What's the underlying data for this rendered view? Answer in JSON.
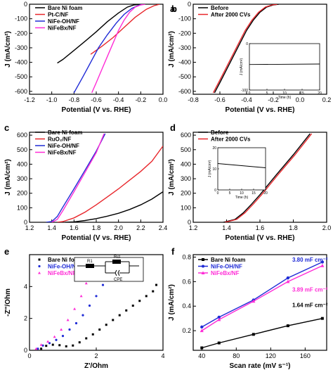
{
  "colors": {
    "black": "#000000",
    "red": "#e8262b",
    "blue": "#1f2bd6",
    "magenta": "#ff2cd6"
  },
  "chart_data": [
    {
      "panel": "a",
      "type": "line",
      "xlabel": "Potential (V vs. RHE)",
      "ylabel": "J (mA/cm²)",
      "xlim": [
        -1.2,
        0
      ],
      "ylim": [
        -620,
        0
      ],
      "xticks": [
        -1.2,
        -1.0,
        -0.8,
        -0.6,
        -0.4,
        -0.2,
        0.0
      ],
      "yticks": [
        0,
        -100,
        -200,
        -300,
        -400,
        -500,
        -600
      ],
      "legend": "left",
      "series": [
        {
          "name": "Bare Ni foam",
          "color": "black",
          "points": [
            [
              -0.95,
              -405
            ],
            [
              -0.9,
              -380
            ],
            [
              -0.8,
              -318
            ],
            [
              -0.7,
              -255
            ],
            [
              -0.6,
              -190
            ],
            [
              -0.5,
              -120
            ],
            [
              -0.4,
              -60
            ],
            [
              -0.32,
              -20
            ],
            [
              -0.26,
              -5
            ],
            [
              -0.2,
              0
            ]
          ]
        },
        {
          "name": "Pt-C/NF",
          "color": "red",
          "points": [
            [
              -0.65,
              -345
            ],
            [
              -0.55,
              -290
            ],
            [
              -0.45,
              -230
            ],
            [
              -0.35,
              -160
            ],
            [
              -0.25,
              -90
            ],
            [
              -0.15,
              -35
            ],
            [
              -0.08,
              -10
            ],
            [
              -0.03,
              0
            ]
          ]
        },
        {
          "name": "NiFe-OH/NF",
          "color": "blue",
          "points": [
            [
              -0.8,
              -610
            ],
            [
              -0.72,
              -500
            ],
            [
              -0.65,
              -400
            ],
            [
              -0.58,
              -300
            ],
            [
              -0.5,
              -210
            ],
            [
              -0.42,
              -130
            ],
            [
              -0.35,
              -70
            ],
            [
              -0.28,
              -28
            ],
            [
              -0.22,
              -8
            ],
            [
              -0.18,
              0
            ]
          ]
        },
        {
          "name": "NiFeBx/NF",
          "color": "magenta",
          "points": [
            [
              -0.64,
              -610
            ],
            [
              -0.6,
              -540
            ],
            [
              -0.55,
              -450
            ],
            [
              -0.5,
              -360
            ],
            [
              -0.45,
              -270
            ],
            [
              -0.4,
              -180
            ],
            [
              -0.35,
              -110
            ],
            [
              -0.3,
              -55
            ],
            [
              -0.25,
              -20
            ],
            [
              -0.2,
              -5
            ],
            [
              -0.16,
              0
            ]
          ]
        }
      ]
    },
    {
      "panel": "b",
      "type": "line",
      "xlabel": "Potential (V vs. RHE)",
      "ylabel": "J (mA/cm²)",
      "xlim": [
        -0.8,
        0.2
      ],
      "ylim": [
        -620,
        0
      ],
      "xticks": [
        -0.8,
        -0.6,
        -0.4,
        -0.2,
        0.0,
        0.2
      ],
      "yticks": [
        0,
        -100,
        -200,
        -300,
        -400,
        -500,
        -600
      ],
      "legend": "top-left",
      "series": [
        {
          "name": "Before",
          "color": "black",
          "points": [
            [
              -0.64,
              -610
            ],
            [
              -0.6,
              -540
            ],
            [
              -0.55,
              -450
            ],
            [
              -0.5,
              -360
            ],
            [
              -0.45,
              -270
            ],
            [
              -0.4,
              -180
            ],
            [
              -0.35,
              -110
            ],
            [
              -0.3,
              -55
            ],
            [
              -0.25,
              -20
            ],
            [
              -0.2,
              -5
            ],
            [
              -0.16,
              0
            ]
          ]
        },
        {
          "name": "After 2000 CVs",
          "color": "red",
          "points": [
            [
              -0.65,
              -610
            ],
            [
              -0.61,
              -540
            ],
            [
              -0.56,
              -450
            ],
            [
              -0.51,
              -360
            ],
            [
              -0.46,
              -270
            ],
            [
              -0.41,
              -180
            ],
            [
              -0.36,
              -110
            ],
            [
              -0.31,
              -55
            ],
            [
              -0.26,
              -20
            ],
            [
              -0.21,
              -5
            ],
            [
              -0.17,
              0
            ]
          ]
        }
      ],
      "inset": {
        "ylabel": "J (mA/cm²)",
        "xlabel": "Time (h)",
        "xlim": [
          0,
          20
        ],
        "xticks": [
          0,
          5,
          10,
          15,
          20
        ],
        "ylim": [
          -100,
          0
        ],
        "yticks": [
          -100,
          0
        ],
        "points": [
          [
            0,
            -45
          ],
          [
            20,
            -44
          ]
        ]
      }
    },
    {
      "panel": "c",
      "type": "line",
      "xlabel": "Potential (V vs. RHE)",
      "ylabel": "J (mA/cm²)",
      "xlim": [
        1.2,
        2.4
      ],
      "ylim": [
        0,
        620
      ],
      "xticks": [
        1.2,
        1.4,
        1.6,
        1.8,
        2.0,
        2.2,
        2.4
      ],
      "yticks": [
        0,
        100,
        200,
        300,
        400,
        500,
        600
      ],
      "legend": "top-left",
      "series": [
        {
          "name": "Bare Ni foam",
          "color": "black",
          "points": [
            [
              1.52,
              0
            ],
            [
              1.6,
              3
            ],
            [
              1.7,
              12
            ],
            [
              1.8,
              25
            ],
            [
              1.9,
              42
            ],
            [
              2.0,
              62
            ],
            [
              2.1,
              88
            ],
            [
              2.2,
              120
            ],
            [
              2.3,
              160
            ],
            [
              2.4,
              210
            ]
          ]
        },
        {
          "name": "RuO₂/NF",
          "color": "red",
          "points": [
            [
              1.45,
              0
            ],
            [
              1.5,
              5
            ],
            [
              1.6,
              30
            ],
            [
              1.7,
              70
            ],
            [
              1.8,
              120
            ],
            [
              1.9,
              175
            ],
            [
              2.0,
              230
            ],
            [
              2.1,
              290
            ],
            [
              2.2,
              350
            ],
            [
              2.3,
              420
            ],
            [
              2.4,
              525
            ]
          ]
        },
        {
          "name": "NiFe-OH/NF",
          "color": "blue",
          "points": [
            [
              1.35,
              0
            ],
            [
              1.4,
              5
            ],
            [
              1.45,
              40
            ],
            [
              1.5,
              105
            ],
            [
              1.6,
              230
            ],
            [
              1.7,
              360
            ],
            [
              1.8,
              490
            ],
            [
              1.88,
              610
            ]
          ]
        },
        {
          "name": "NiFeBx/NF",
          "color": "magenta",
          "points": [
            [
              1.4,
              0
            ],
            [
              1.45,
              20
            ],
            [
              1.5,
              80
            ],
            [
              1.6,
              210
            ],
            [
              1.7,
              345
            ],
            [
              1.8,
              480
            ],
            [
              1.87,
              610
            ]
          ]
        }
      ]
    },
    {
      "panel": "d",
      "type": "line",
      "xlabel": "Potential (V vs. RHE)",
      "ylabel": "J (mA/cm²)",
      "xlim": [
        1.2,
        2.0
      ],
      "ylim": [
        0,
        620
      ],
      "xticks": [
        1.2,
        1.4,
        1.6,
        1.8,
        2.0
      ],
      "yticks": [
        0,
        100,
        200,
        300,
        400,
        500,
        600
      ],
      "legend": "top-left",
      "series": [
        {
          "name": "Before",
          "color": "black",
          "points": [
            [
              1.38,
              0
            ],
            [
              1.45,
              20
            ],
            [
              1.5,
              65
            ],
            [
              1.55,
              125
            ],
            [
              1.6,
              190
            ],
            [
              1.7,
              330
            ],
            [
              1.8,
              465
            ],
            [
              1.9,
              610
            ]
          ]
        },
        {
          "name": "After 2000 CVs",
          "color": "red",
          "points": [
            [
              1.39,
              0
            ],
            [
              1.46,
              20
            ],
            [
              1.51,
              65
            ],
            [
              1.56,
              125
            ],
            [
              1.61,
              190
            ],
            [
              1.71,
              330
            ],
            [
              1.81,
              465
            ],
            [
              1.91,
              610
            ]
          ]
        }
      ],
      "inset": {
        "ylabel": "J (mA/cm²)",
        "xlabel": "Time (h)",
        "xlim": [
          0,
          20
        ],
        "xticks": [
          0,
          5,
          10,
          15,
          20
        ],
        "ylim": [
          0,
          20
        ],
        "yticks": [
          0,
          10,
          20
        ],
        "points": [
          [
            0,
            12.5
          ],
          [
            5,
            12
          ],
          [
            10,
            11.5
          ],
          [
            15,
            11
          ],
          [
            20,
            10.5
          ]
        ]
      }
    },
    {
      "panel": "e",
      "type": "scatter",
      "xlabel": "Z'/Ohm",
      "ylabel": "-Z''/Ohm",
      "xlim": [
        0,
        4
      ],
      "ylim": [
        0,
        6
      ],
      "xticks": [
        0,
        2,
        4
      ],
      "yticks": [
        0,
        2,
        4
      ],
      "legend": "top-left",
      "circuit_labels": [
        "R1",
        "Rct",
        "CPE"
      ],
      "series": [
        {
          "name": "Bare Ni foam",
          "color": "black",
          "points": [
            [
              0.35,
              0.1
            ],
            [
              0.5,
              0.28
            ],
            [
              0.7,
              0.35
            ],
            [
              0.9,
              0.32
            ],
            [
              1.1,
              0.25
            ],
            [
              1.3,
              0.3
            ],
            [
              1.5,
              0.5
            ],
            [
              1.7,
              0.75
            ],
            [
              1.9,
              1.0
            ],
            [
              2.1,
              1.3
            ],
            [
              2.3,
              1.6
            ],
            [
              2.5,
              1.9
            ],
            [
              2.7,
              2.2
            ],
            [
              2.9,
              2.5
            ],
            [
              3.1,
              2.8
            ],
            [
              3.3,
              3.1
            ],
            [
              3.5,
              3.4
            ],
            [
              3.7,
              3.7
            ],
            [
              3.8,
              4.1
            ]
          ]
        },
        {
          "name": "NiFe-OH/NF",
          "color": "blue",
          "points": [
            [
              0.25,
              0.1
            ],
            [
              0.4,
              0.3
            ],
            [
              0.6,
              0.45
            ],
            [
              0.8,
              0.65
            ],
            [
              1.0,
              0.9
            ],
            [
              1.2,
              1.3
            ],
            [
              1.4,
              1.7
            ],
            [
              1.6,
              2.2
            ],
            [
              1.8,
              2.8
            ],
            [
              2.0,
              3.4
            ],
            [
              2.2,
              4.1
            ],
            [
              2.35,
              4.7
            ]
          ]
        },
        {
          "name": "NiFeBx/NF",
          "color": "magenta",
          "points": [
            [
              0.2,
              0.1
            ],
            [
              0.35,
              0.35
            ],
            [
              0.55,
              0.55
            ],
            [
              0.75,
              0.85
            ],
            [
              0.95,
              1.3
            ],
            [
              1.15,
              1.9
            ],
            [
              1.35,
              2.6
            ],
            [
              1.55,
              3.4
            ],
            [
              1.7,
              4.2
            ],
            [
              1.85,
              5.0
            ],
            [
              1.95,
              5.6
            ]
          ]
        }
      ]
    },
    {
      "panel": "f",
      "type": "line",
      "xlabel": "Scan rate (mV s⁻¹)",
      "ylabel": "J (mA/cm²)",
      "xlim": [
        30,
        185
      ],
      "ylim": [
        0.04,
        0.82
      ],
      "xticks": [
        40,
        80,
        120,
        160
      ],
      "yticks": [
        0.2,
        0.4,
        0.6,
        0.8
      ],
      "legend": "top-left",
      "series": [
        {
          "name": "Bare Ni foam",
          "color": "black",
          "x": [
            40,
            60,
            100,
            140,
            180
          ],
          "y": [
            0.06,
            0.1,
            0.17,
            0.24,
            0.3
          ],
          "annotation": "1.64 mF cm⁻²"
        },
        {
          "name": "NiFe-OH/NF",
          "color": "blue",
          "x": [
            40,
            60,
            100,
            140,
            180
          ],
          "y": [
            0.23,
            0.31,
            0.45,
            0.63,
            0.76
          ],
          "annotation": "3.80 mF cm⁻²"
        },
        {
          "name": "NiFeBx/NF",
          "color": "magenta",
          "x": [
            40,
            60,
            100,
            140,
            180
          ],
          "y": [
            0.2,
            0.29,
            0.44,
            0.6,
            0.73
          ],
          "annotation": "3.89 mF cm⁻²"
        }
      ]
    }
  ]
}
